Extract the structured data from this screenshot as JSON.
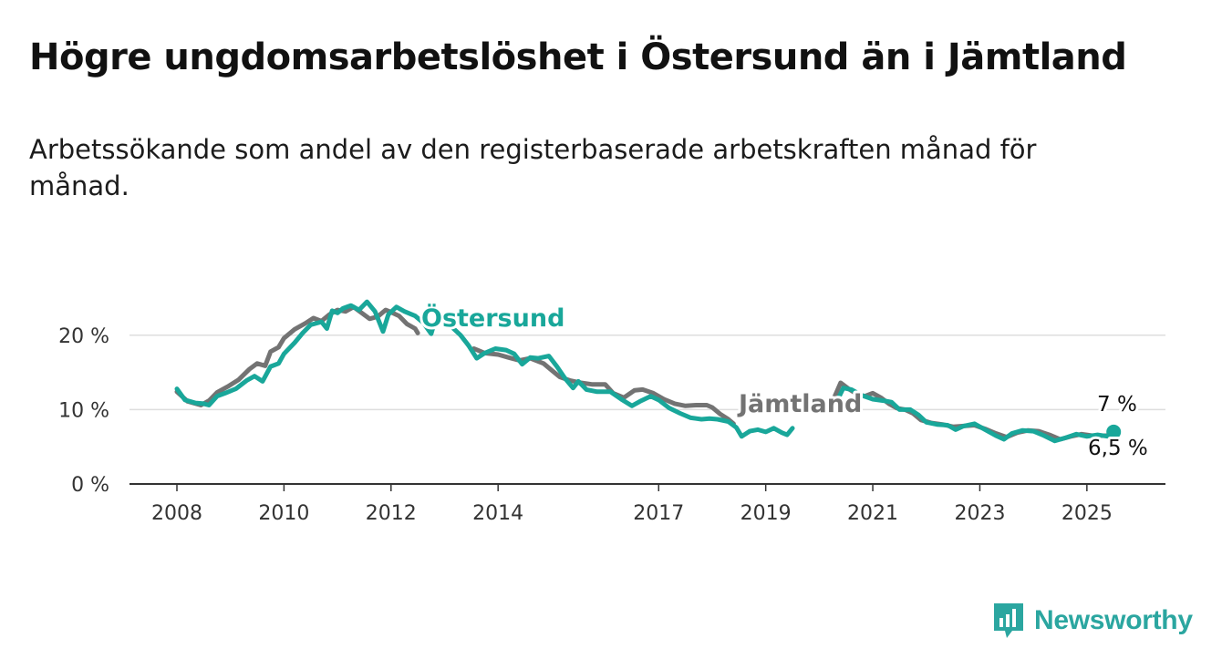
{
  "title": "Högre ungdomsarbetslöshet i Östersund än i Jämtland",
  "subtitle": "Arbetssökande som andel av den registerbaserade arbetskraften månad för månad.",
  "brand": {
    "name": "Newsworthy",
    "icon": "bar-chart-icon",
    "color": "#2ba6a0"
  },
  "chart_data": {
    "type": "line",
    "title": "Högre ungdomsarbetslöshet i Östersund än i Jämtland",
    "subtitle": "Arbetssökande som andel av den registerbaserade arbetskraften månad för månad.",
    "xlabel": "",
    "ylabel": "",
    "x_ticks": [
      "2008",
      "2010",
      "2012",
      "2014",
      "2017",
      "2019",
      "2021",
      "2023",
      "2025"
    ],
    "y_ticks": [
      "0 %",
      "10 %",
      "20 %"
    ],
    "ylim": [
      0,
      25
    ],
    "grid": true,
    "legend": "inline labels",
    "annotations": {
      "ostersund_last": "7 %",
      "jamtland_last": "6,5 %"
    },
    "series": [
      {
        "name": "Jämtland",
        "color": "#737373",
        "points": [
          [
            2008.0,
            12.4
          ],
          [
            2008.2,
            11.1
          ],
          [
            2008.45,
            10.6
          ],
          [
            2008.6,
            11.2
          ],
          [
            2008.75,
            12.3
          ],
          [
            2008.95,
            13.1
          ],
          [
            2009.15,
            14.0
          ],
          [
            2009.35,
            15.4
          ],
          [
            2009.5,
            16.2
          ],
          [
            2009.65,
            15.9
          ],
          [
            2009.75,
            17.8
          ],
          [
            2009.9,
            18.4
          ],
          [
            2010.0,
            19.6
          ],
          [
            2010.2,
            20.8
          ],
          [
            2010.4,
            21.6
          ],
          [
            2010.55,
            22.3
          ],
          [
            2010.7,
            21.9
          ],
          [
            2010.85,
            22.8
          ],
          [
            2011.0,
            23.4
          ],
          [
            2011.15,
            23.2
          ],
          [
            2011.3,
            23.8
          ],
          [
            2011.45,
            23.0
          ],
          [
            2011.6,
            22.2
          ],
          [
            2011.75,
            22.5
          ],
          [
            2011.9,
            23.4
          ],
          [
            2012.0,
            23.1
          ],
          [
            2012.15,
            22.6
          ],
          [
            2012.3,
            21.5
          ],
          [
            2012.45,
            20.9
          ],
          [
            2012.5,
            20.3
          ],
          null,
          [
            2013.55,
            18.2
          ],
          [
            2013.75,
            17.6
          ],
          [
            2014.0,
            17.4
          ],
          [
            2014.2,
            17.0
          ],
          [
            2014.4,
            16.6
          ],
          [
            2014.6,
            16.9
          ],
          [
            2014.85,
            16.2
          ],
          [
            2015.0,
            15.3
          ],
          [
            2015.15,
            14.4
          ],
          [
            2015.35,
            13.9
          ],
          [
            2015.55,
            13.6
          ],
          [
            2015.75,
            13.4
          ],
          [
            2016.0,
            13.4
          ],
          [
            2016.15,
            12.2
          ],
          [
            2016.35,
            11.6
          ],
          [
            2016.55,
            12.6
          ],
          [
            2016.7,
            12.7
          ],
          [
            2016.9,
            12.2
          ],
          [
            2017.1,
            11.4
          ],
          [
            2017.3,
            10.8
          ],
          [
            2017.5,
            10.5
          ],
          [
            2017.7,
            10.6
          ],
          [
            2017.9,
            10.6
          ],
          [
            2018.0,
            10.3
          ],
          [
            2018.15,
            9.4
          ],
          [
            2018.3,
            8.7
          ],
          [
            2018.4,
            8.1
          ],
          null,
          [
            2020.25,
            11.1
          ],
          [
            2020.4,
            13.6
          ],
          [
            2020.55,
            12.8
          ],
          [
            2020.7,
            12.1
          ],
          [
            2020.85,
            11.8
          ],
          [
            2021.0,
            12.2
          ],
          [
            2021.15,
            11.6
          ],
          [
            2021.3,
            10.8
          ],
          [
            2021.45,
            10.2
          ],
          [
            2021.6,
            10.0
          ],
          [
            2021.75,
            9.5
          ],
          [
            2021.9,
            8.6
          ],
          [
            2022.1,
            8.2
          ],
          [
            2022.3,
            8.0
          ],
          [
            2022.5,
            7.7
          ],
          [
            2022.7,
            7.8
          ],
          [
            2022.9,
            7.9
          ],
          [
            2023.1,
            7.4
          ],
          [
            2023.3,
            6.8
          ],
          [
            2023.5,
            6.3
          ],
          [
            2023.7,
            6.9
          ],
          [
            2023.9,
            7.2
          ],
          [
            2024.1,
            7.1
          ],
          [
            2024.3,
            6.6
          ],
          [
            2024.5,
            6.0
          ],
          [
            2024.7,
            6.4
          ],
          [
            2024.9,
            6.7
          ],
          [
            2025.1,
            6.5
          ],
          [
            2025.3,
            6.5
          ],
          [
            2025.5,
            6.5
          ]
        ]
      },
      {
        "name": "Östersund",
        "color": "#19a79a",
        "points": [
          [
            2008.0,
            12.8
          ],
          [
            2008.15,
            11.3
          ],
          [
            2008.35,
            10.9
          ],
          [
            2008.5,
            10.8
          ],
          [
            2008.6,
            10.6
          ],
          [
            2008.75,
            11.8
          ],
          [
            2008.9,
            12.2
          ],
          [
            2009.1,
            12.8
          ],
          [
            2009.3,
            13.9
          ],
          [
            2009.45,
            14.5
          ],
          [
            2009.6,
            13.8
          ],
          [
            2009.75,
            15.8
          ],
          [
            2009.9,
            16.2
          ],
          [
            2010.0,
            17.5
          ],
          [
            2010.2,
            19.0
          ],
          [
            2010.35,
            20.3
          ],
          [
            2010.5,
            21.4
          ],
          [
            2010.7,
            21.8
          ],
          [
            2010.8,
            20.9
          ],
          [
            2010.9,
            23.3
          ],
          [
            2011.0,
            23.0
          ],
          [
            2011.1,
            23.6
          ],
          [
            2011.25,
            24.0
          ],
          [
            2011.4,
            23.4
          ],
          [
            2011.55,
            24.5
          ],
          [
            2011.7,
            23.2
          ],
          [
            2011.85,
            20.5
          ],
          [
            2011.95,
            22.8
          ],
          [
            2012.1,
            23.8
          ],
          [
            2012.25,
            23.2
          ],
          [
            2012.45,
            22.6
          ],
          [
            2012.6,
            21.7
          ],
          [
            2012.75,
            20.2
          ],
          [
            2012.8,
            21.4
          ],
          null,
          [
            2013.15,
            21.0
          ],
          [
            2013.3,
            20.0
          ],
          [
            2013.45,
            18.6
          ],
          [
            2013.6,
            16.9
          ],
          [
            2013.75,
            17.6
          ],
          [
            2013.95,
            18.2
          ],
          [
            2014.15,
            18.0
          ],
          [
            2014.3,
            17.5
          ],
          [
            2014.45,
            16.1
          ],
          [
            2014.6,
            17.0
          ],
          [
            2014.75,
            16.9
          ],
          [
            2014.95,
            17.2
          ],
          [
            2015.1,
            15.8
          ],
          [
            2015.25,
            14.2
          ],
          [
            2015.4,
            12.9
          ],
          [
            2015.5,
            13.8
          ],
          [
            2015.65,
            12.7
          ],
          [
            2015.85,
            12.4
          ],
          [
            2016.1,
            12.4
          ],
          [
            2016.3,
            11.4
          ],
          [
            2016.5,
            10.5
          ],
          [
            2016.65,
            11.1
          ],
          [
            2016.85,
            11.8
          ],
          [
            2017.0,
            11.3
          ],
          [
            2017.2,
            10.2
          ],
          [
            2017.4,
            9.5
          ],
          [
            2017.6,
            8.9
          ],
          [
            2017.8,
            8.7
          ],
          [
            2017.95,
            8.8
          ],
          [
            2018.1,
            8.7
          ],
          [
            2018.3,
            8.4
          ],
          [
            2018.45,
            7.6
          ],
          [
            2018.55,
            6.4
          ],
          [
            2018.7,
            7.1
          ],
          [
            2018.85,
            7.3
          ],
          [
            2019.0,
            7.0
          ],
          [
            2019.15,
            7.5
          ],
          [
            2019.3,
            6.9
          ],
          [
            2019.4,
            6.6
          ],
          [
            2019.5,
            7.5
          ],
          null,
          [
            2020.3,
            10.7
          ],
          [
            2020.45,
            12.9
          ],
          [
            2020.6,
            12.7
          ],
          [
            2020.8,
            11.9
          ],
          [
            2021.0,
            11.4
          ],
          [
            2021.2,
            11.2
          ],
          [
            2021.35,
            11.0
          ],
          [
            2021.5,
            10.0
          ],
          [
            2021.7,
            10.0
          ],
          [
            2021.85,
            9.3
          ],
          [
            2022.0,
            8.3
          ],
          [
            2022.2,
            8.0
          ],
          [
            2022.4,
            7.9
          ],
          [
            2022.55,
            7.3
          ],
          [
            2022.7,
            7.8
          ],
          [
            2022.9,
            8.1
          ],
          [
            2023.1,
            7.3
          ],
          [
            2023.3,
            6.5
          ],
          [
            2023.45,
            6.0
          ],
          [
            2023.6,
            6.8
          ],
          [
            2023.8,
            7.2
          ],
          [
            2024.0,
            7.1
          ],
          [
            2024.2,
            6.5
          ],
          [
            2024.4,
            5.8
          ],
          [
            2024.6,
            6.2
          ],
          [
            2024.8,
            6.7
          ],
          [
            2025.0,
            6.4
          ],
          [
            2025.2,
            6.6
          ],
          [
            2025.4,
            6.4
          ],
          [
            2025.5,
            7.0
          ]
        ]
      }
    ]
  }
}
